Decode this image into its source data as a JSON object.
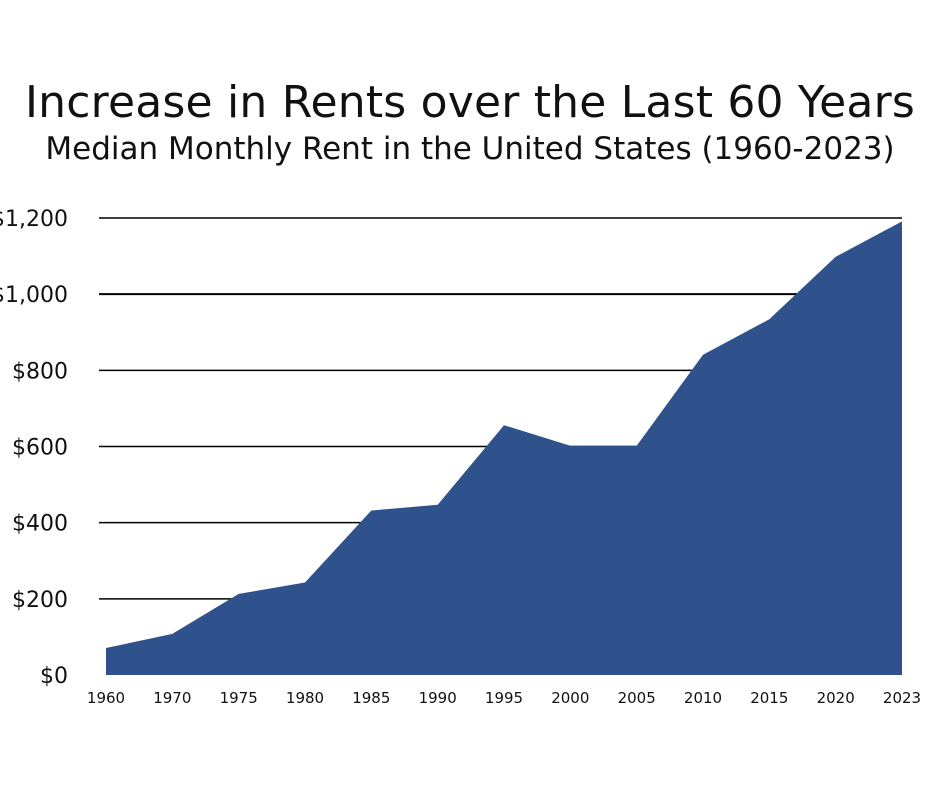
{
  "title": "Increase in Rents over the Last 60 Years",
  "subtitle": "Median Monthly Rent in the United States (1960-2023)",
  "colors": {
    "area_fill": "#2f528c",
    "gridline": "#000000",
    "text": "#111111"
  },
  "chart_data": {
    "type": "area",
    "title": "Increase in Rents over the Last 60 Years",
    "subtitle": "Median Monthly Rent in the United States (1960-2023)",
    "xlabel": "",
    "ylabel": "",
    "x_tick_labels": [
      "1960",
      "1970",
      "1975",
      "1980",
      "1985",
      "1990",
      "1995",
      "2000",
      "2005",
      "2010",
      "2015",
      "2020",
      "2023"
    ],
    "y_tick_labels": [
      "$0",
      "$200",
      "$400",
      "$600",
      "$800",
      "$1,000",
      "$1,200"
    ],
    "y_tick_values": [
      0,
      200,
      400,
      600,
      800,
      1000,
      1200
    ],
    "ylim": [
      0,
      1200
    ],
    "grid": true,
    "legend": "none",
    "series": [
      {
        "x": [
          1960,
          1970,
          1975,
          1980,
          1985,
          1990,
          1995,
          2000,
          2005,
          2010,
          2015,
          2020,
          2023
        ],
        "values": [
          71,
          108,
          213,
          243,
          432,
          447,
          656,
          602,
          602,
          841,
          934,
          1098,
          1191
        ]
      }
    ]
  }
}
